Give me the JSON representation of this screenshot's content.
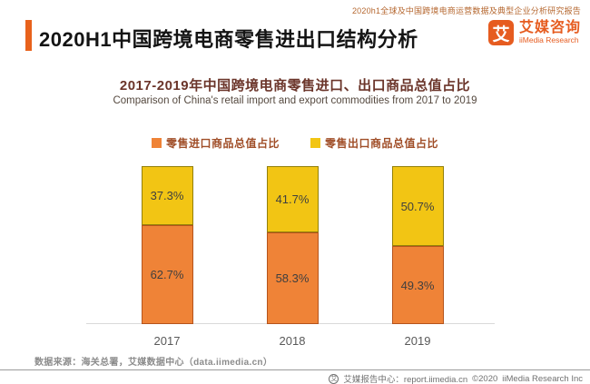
{
  "page": {
    "report_tag": "2020h1全球及中国跨境电商运营数据及典型企业分析研究报告",
    "title": "2020H1中国跨境电商零售进出口结构分析",
    "accent_color": "#E8621C"
  },
  "logo": {
    "glyph": "艾",
    "name_cn": "艾媒咨询",
    "name_en": "iiMedia Research",
    "brand_color": "#E65C20"
  },
  "chart_header": {
    "title": "2017-2019年中国跨境电商零售进口、出口商品总值占比",
    "subtitle": "Comparison of China's retail import and export commodities from 2017 to 2019"
  },
  "chart_data": {
    "type": "bar",
    "stacked": true,
    "stack_mode": "percent",
    "title": "2017-2019年中国跨境电商零售进口、出口商品总值占比",
    "categories": [
      "2017",
      "2018",
      "2019"
    ],
    "series": [
      {
        "name": "零售进口商品总值占比",
        "values": [
          62.7,
          58.3,
          49.3
        ],
        "color": "#EF8337",
        "border_color": "#B5541C",
        "position": "bottom"
      },
      {
        "name": "零售出口商品总值占比",
        "values": [
          37.3,
          41.7,
          50.7
        ],
        "color": "#F2C514",
        "border_color": "#93800A",
        "position": "top"
      }
    ],
    "value_suffix": "%",
    "ylim": [
      0,
      100
    ],
    "grid": false,
    "legend_position": "top",
    "label_color": "#3F3F3F"
  },
  "footer": {
    "source": "数据来源：海关总署，艾媒数据中心（data.iimedia.cn）",
    "report_center": "艾媒报告中心：report.iimedia.cn",
    "copyright": "©2020",
    "company": "iiMedia Research Inc"
  }
}
